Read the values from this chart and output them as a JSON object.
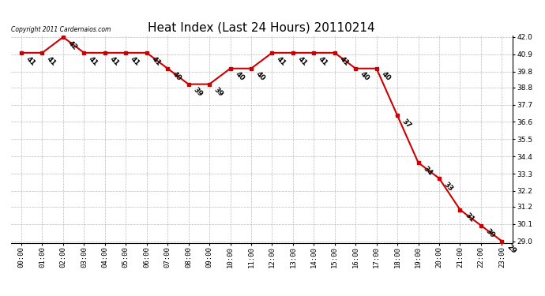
{
  "title": "Heat Index (Last 24 Hours) 20110214",
  "copyright": "Copyright 2011 Cardernaios.com",
  "hours": [
    "00:00",
    "01:00",
    "02:00",
    "03:00",
    "04:00",
    "05:00",
    "06:00",
    "07:00",
    "08:00",
    "09:00",
    "10:00",
    "11:00",
    "12:00",
    "13:00",
    "14:00",
    "15:00",
    "16:00",
    "17:00",
    "18:00",
    "19:00",
    "20:00",
    "21:00",
    "22:00",
    "23:00"
  ],
  "values": [
    41,
    41,
    42,
    41,
    41,
    41,
    41,
    40,
    39,
    39,
    40,
    40,
    41,
    41,
    41,
    41,
    40,
    40,
    37,
    34,
    33,
    31,
    30,
    29
  ],
  "line_color": "#cc0000",
  "marker_color": "#cc0000",
  "bg_color": "#ffffff",
  "grid_color": "#bbbbbb",
  "ylim_min": 29.0,
  "ylim_max": 42.0,
  "yticks": [
    29.0,
    30.1,
    31.2,
    32.2,
    33.3,
    34.4,
    35.5,
    36.6,
    37.7,
    38.8,
    39.8,
    40.9,
    42.0
  ],
  "title_fontsize": 11,
  "label_fontsize": 6.5,
  "tick_fontsize": 6.5,
  "copyright_fontsize": 5.5
}
